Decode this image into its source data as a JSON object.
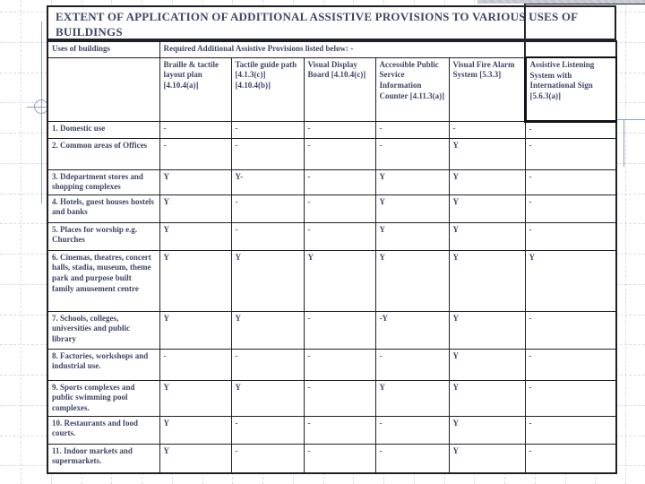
{
  "slide": {
    "title": "EXTENT OF APPLICATION OF ADDITIONAL ASSISTIVE PROVISIONS TO VARIOUS USES OF BUILDINGS"
  },
  "table": {
    "uses_header": "Uses of buildings",
    "provisions_header": "Required Additional Assistive Provisions listed below: -",
    "columns": [
      "Braille & tactile layout plan [4.10.4(a)]",
      "Tactile guide path [4.1.3(c)] [4.10.4(b)]",
      "Visual Display Board [4.10.4(c)]",
      "Accessible Public Service Information Counter [4.11.3(a)]",
      "Visual Fire Alarm System [5.3.3]",
      "Assistive Listening System with International Sign [5.6.3(a)]"
    ],
    "rows": [
      {
        "label": "1. Domestic use",
        "values": [
          "-",
          "-",
          "-",
          "-",
          "-",
          "-"
        ]
      },
      {
        "label": "2. Common areas of Offices",
        "values": [
          "-",
          "-",
          "-",
          "-",
          "Y",
          "-"
        ]
      },
      {
        "label": "3. Ddepartment stores and shopping complexes",
        "values": [
          "Y",
          "Y-",
          "-",
          "Y",
          "Y",
          "-"
        ]
      },
      {
        "label": "4. Hotels, guest houses hostels and banks",
        "values": [
          "Y",
          "-",
          "-",
          "Y",
          "Y",
          "-"
        ]
      },
      {
        "label": "5. Places for worship e.g. Churches",
        "values": [
          "Y",
          "-",
          "-",
          "Y",
          "Y",
          "-"
        ]
      },
      {
        "label": "6. Cinemas, theatres, concert halls, stadia, museum, theme park and purpose built family amusement centre",
        "values": [
          "Y",
          "Y",
          "Y",
          "Y",
          "Y",
          "Y"
        ]
      },
      {
        "label": "7. Schools, colleges, universities and public library",
        "values": [
          "Y",
          "Y",
          "-",
          "-Y",
          "Y",
          "-"
        ]
      },
      {
        "label": "8. Factories, workshops and industrial use.",
        "values": [
          "-",
          "-",
          "-",
          "-",
          "Y",
          "-"
        ]
      },
      {
        "label": "9. Sports complexes and public swimming pool complexes.",
        "values": [
          "Y",
          "Y",
          "-",
          "Y",
          "Y",
          "-"
        ]
      },
      {
        "label": "10. Restaurants and food courts.",
        "values": [
          "Y",
          "-",
          "-",
          "-",
          "Y",
          "-"
        ]
      },
      {
        "label": "11. Indoor markets and supermarkets.",
        "values": [
          "Y",
          "-",
          "-",
          "-",
          "Y",
          "-"
        ]
      }
    ]
  },
  "colors": {
    "text": "#3e4667",
    "table_border": "#1f1f28",
    "accent_line": "#8d9fc2",
    "top_bar": "#c7cad1",
    "grid_line": "#d9dce4"
  }
}
